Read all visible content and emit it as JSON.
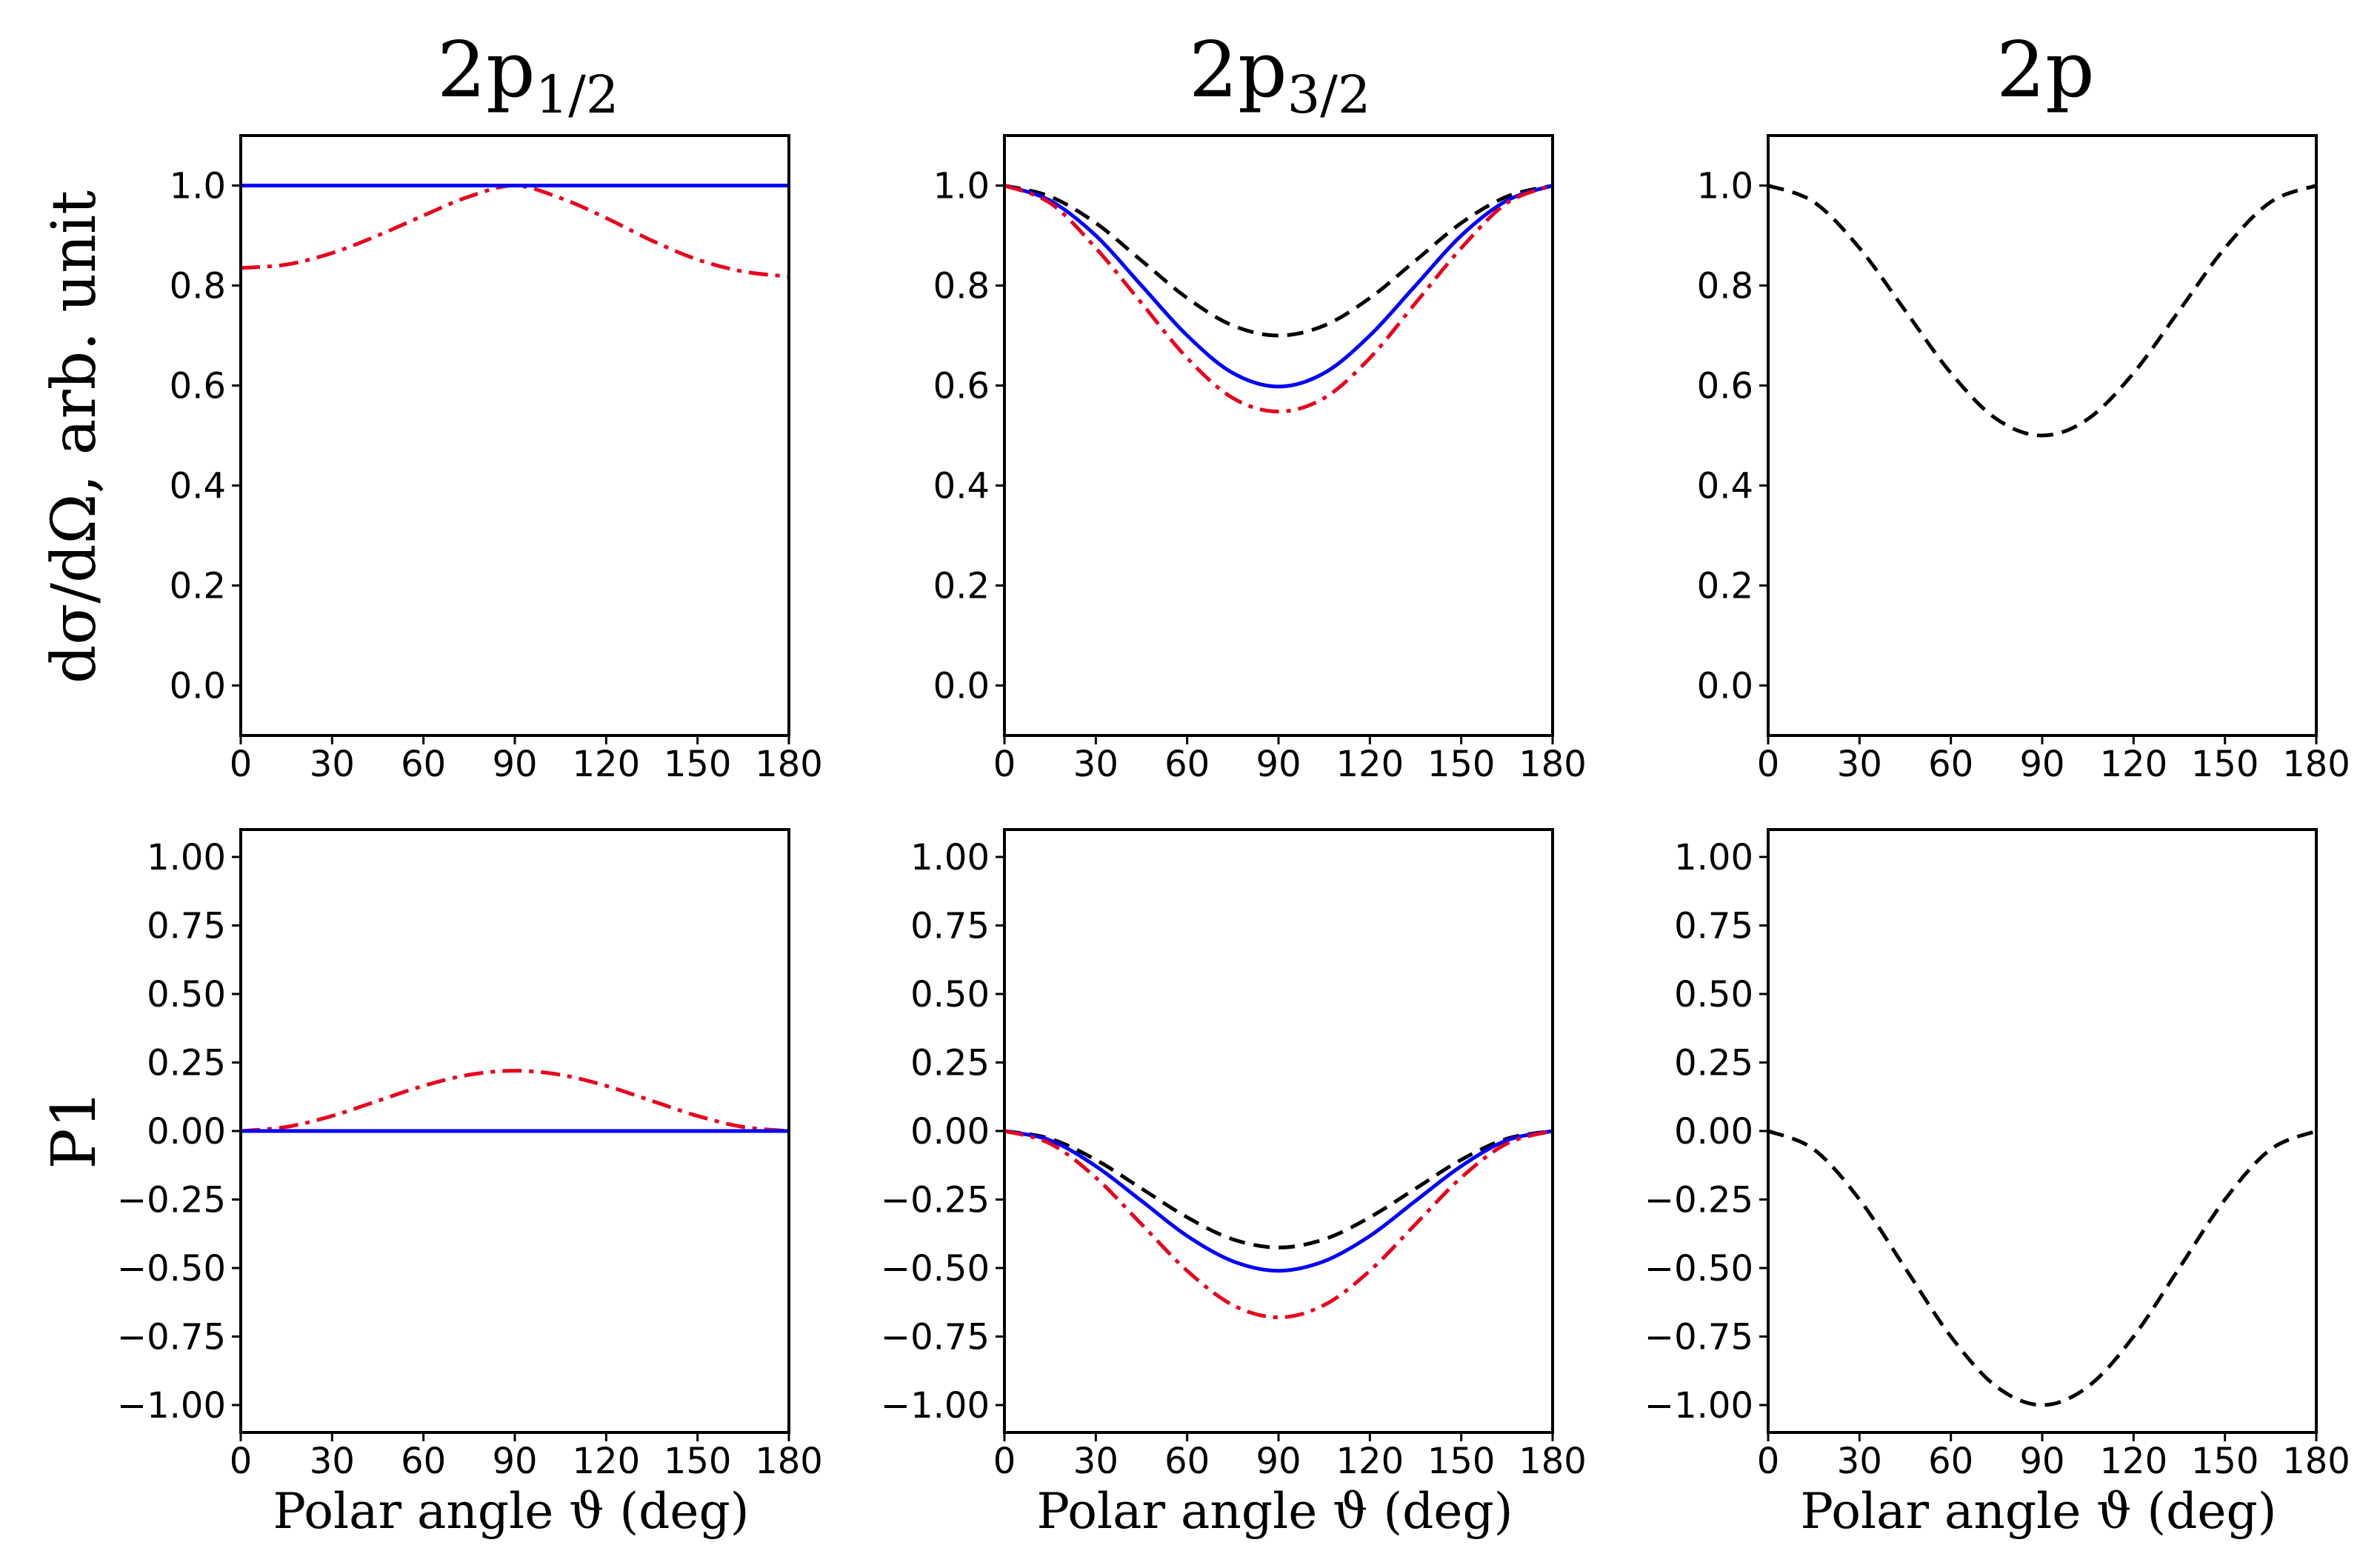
{
  "figure": {
    "column_titles": [
      {
        "main": "2p",
        "sub": "1/2"
      },
      {
        "main": "2p",
        "sub": "3/2"
      },
      {
        "main": "2p",
        "sub": ""
      }
    ],
    "row_labels": [
      "dσ/dΩ, arb. unit",
      "P1"
    ],
    "xlabel": "Polar angle ϑ (deg)"
  },
  "colors": {
    "black": "#000000",
    "red": "#e8001c",
    "blue": "#0000ff"
  },
  "chart_data": [
    {
      "type": "line",
      "panel": "top-left",
      "x": [
        0,
        15,
        30,
        45,
        60,
        75,
        90,
        105,
        120,
        135,
        150,
        165,
        180
      ],
      "xlim": [
        0,
        180
      ],
      "ylim": [
        -0.1,
        1.1
      ],
      "xticks": [
        0,
        30,
        60,
        90,
        120,
        150,
        180
      ],
      "yticks": [
        0.0,
        0.2,
        0.4,
        0.6,
        0.8,
        1.0
      ],
      "ytick_labels": [
        "0.0",
        "0.2",
        "0.4",
        "0.6",
        "0.8",
        "1.0"
      ],
      "series": [
        {
          "style": "dashdot",
          "color": "#e8001c",
          "values": [
            0.835,
            0.842,
            0.865,
            0.9,
            0.94,
            0.978,
            1.0,
            0.975,
            0.935,
            0.89,
            0.852,
            0.828,
            0.818
          ]
        },
        {
          "style": "solid",
          "color": "#0000ff",
          "values": [
            1.0,
            1.0,
            1.0,
            1.0,
            1.0,
            1.0,
            1.0,
            1.0,
            1.0,
            1.0,
            1.0,
            1.0,
            1.0
          ]
        }
      ]
    },
    {
      "type": "line",
      "panel": "top-middle",
      "x": [
        0,
        15,
        30,
        45,
        60,
        75,
        90,
        105,
        120,
        135,
        150,
        165,
        180
      ],
      "xlim": [
        0,
        180
      ],
      "ylim": [
        -0.1,
        1.1
      ],
      "xticks": [
        0,
        30,
        60,
        90,
        120,
        150,
        180
      ],
      "yticks": [
        0.0,
        0.2,
        0.4,
        0.6,
        0.8,
        1.0
      ],
      "ytick_labels": [
        "0.0",
        "0.2",
        "0.4",
        "0.6",
        "0.8",
        "1.0"
      ],
      "series": [
        {
          "style": "dashed",
          "color": "#000000",
          "values": [
            1.0,
            0.978,
            0.925,
            0.85,
            0.775,
            0.72,
            0.7,
            0.72,
            0.775,
            0.85,
            0.925,
            0.978,
            1.0
          ]
        },
        {
          "style": "solid",
          "color": "#0000ff",
          "values": [
            1.0,
            0.97,
            0.9,
            0.8,
            0.7,
            0.625,
            0.598,
            0.625,
            0.7,
            0.8,
            0.9,
            0.97,
            1.0
          ]
        },
        {
          "style": "dashdot",
          "color": "#e8001c",
          "values": [
            1.0,
            0.965,
            0.875,
            0.765,
            0.655,
            0.575,
            0.548,
            0.575,
            0.655,
            0.765,
            0.875,
            0.965,
            1.0
          ]
        }
      ]
    },
    {
      "type": "line",
      "panel": "top-right",
      "x": [
        0,
        15,
        30,
        45,
        60,
        75,
        90,
        105,
        120,
        135,
        150,
        165,
        180
      ],
      "xlim": [
        0,
        180
      ],
      "ylim": [
        -0.1,
        1.1
      ],
      "xticks": [
        0,
        30,
        60,
        90,
        120,
        150,
        180
      ],
      "yticks": [
        0.0,
        0.2,
        0.4,
        0.6,
        0.8,
        1.0
      ],
      "ytick_labels": [
        "0.0",
        "0.2",
        "0.4",
        "0.6",
        "0.8",
        "1.0"
      ],
      "series": [
        {
          "style": "dashed",
          "color": "#000000",
          "values": [
            1.0,
            0.967,
            0.875,
            0.75,
            0.625,
            0.533,
            0.5,
            0.533,
            0.625,
            0.75,
            0.875,
            0.967,
            1.0
          ]
        }
      ]
    },
    {
      "type": "line",
      "panel": "bottom-left",
      "x": [
        0,
        15,
        30,
        45,
        60,
        75,
        90,
        105,
        120,
        135,
        150,
        165,
        180
      ],
      "xlim": [
        0,
        180
      ],
      "ylim": [
        -1.1,
        1.1
      ],
      "xticks": [
        0,
        30,
        60,
        90,
        120,
        150,
        180
      ],
      "yticks": [
        -1.0,
        -0.75,
        -0.5,
        -0.25,
        0.0,
        0.25,
        0.5,
        0.75,
        1.0
      ],
      "ytick_labels": [
        "−1.00",
        "−0.75",
        "−0.50",
        "−0.25",
        "0.00",
        "0.25",
        "0.50",
        "0.75",
        "1.00"
      ],
      "series": [
        {
          "style": "dashdot",
          "color": "#e8001c",
          "values": [
            0.0,
            0.015,
            0.055,
            0.11,
            0.165,
            0.205,
            0.22,
            0.205,
            0.165,
            0.11,
            0.055,
            0.015,
            0.0
          ]
        },
        {
          "style": "solid",
          "color": "#0000ff",
          "values": [
            0.0,
            0.0,
            0.0,
            0.0,
            0.0,
            0.0,
            0.0,
            0.0,
            0.0,
            0.0,
            0.0,
            0.0,
            0.0
          ]
        }
      ]
    },
    {
      "type": "line",
      "panel": "bottom-middle",
      "x": [
        0,
        15,
        30,
        45,
        60,
        75,
        90,
        105,
        120,
        135,
        150,
        165,
        180
      ],
      "xlim": [
        0,
        180
      ],
      "ylim": [
        -1.1,
        1.1
      ],
      "xticks": [
        0,
        30,
        60,
        90,
        120,
        150,
        180
      ],
      "yticks": [
        -1.0,
        -0.75,
        -0.5,
        -0.25,
        0.0,
        0.25,
        0.5,
        0.75,
        1.0
      ],
      "ytick_labels": [
        "−1.00",
        "−0.75",
        "−0.50",
        "−0.25",
        "0.00",
        "0.25",
        "0.50",
        "0.75",
        "1.00"
      ],
      "series": [
        {
          "style": "dashed",
          "color": "#000000",
          "values": [
            0.0,
            -0.028,
            -0.105,
            -0.21,
            -0.315,
            -0.395,
            -0.425,
            -0.395,
            -0.315,
            -0.21,
            -0.105,
            -0.028,
            0.0
          ]
        },
        {
          "style": "solid",
          "color": "#0000ff",
          "values": [
            0.0,
            -0.034,
            -0.128,
            -0.255,
            -0.383,
            -0.475,
            -0.51,
            -0.475,
            -0.383,
            -0.255,
            -0.128,
            -0.034,
            0.0
          ]
        },
        {
          "style": "dashdot",
          "color": "#e8001c",
          "values": [
            0.0,
            -0.046,
            -0.17,
            -0.34,
            -0.51,
            -0.635,
            -0.68,
            -0.635,
            -0.51,
            -0.34,
            -0.17,
            -0.046,
            0.0
          ]
        }
      ]
    },
    {
      "type": "line",
      "panel": "bottom-right",
      "x": [
        0,
        15,
        30,
        45,
        60,
        75,
        90,
        105,
        120,
        135,
        150,
        165,
        180
      ],
      "xlim": [
        0,
        180
      ],
      "ylim": [
        -1.1,
        1.1
      ],
      "xticks": [
        0,
        30,
        60,
        90,
        120,
        150,
        180
      ],
      "yticks": [
        -1.0,
        -0.75,
        -0.5,
        -0.25,
        0.0,
        0.25,
        0.5,
        0.75,
        1.0
      ],
      "ytick_labels": [
        "−1.00",
        "−0.75",
        "−0.50",
        "−0.25",
        "0.00",
        "0.25",
        "0.50",
        "0.75",
        "1.00"
      ],
      "series": [
        {
          "style": "dashed",
          "color": "#000000",
          "values": [
            0.0,
            -0.067,
            -0.25,
            -0.5,
            -0.75,
            -0.933,
            -1.0,
            -0.933,
            -0.75,
            -0.5,
            -0.25,
            -0.067,
            0.0
          ]
        }
      ]
    }
  ]
}
